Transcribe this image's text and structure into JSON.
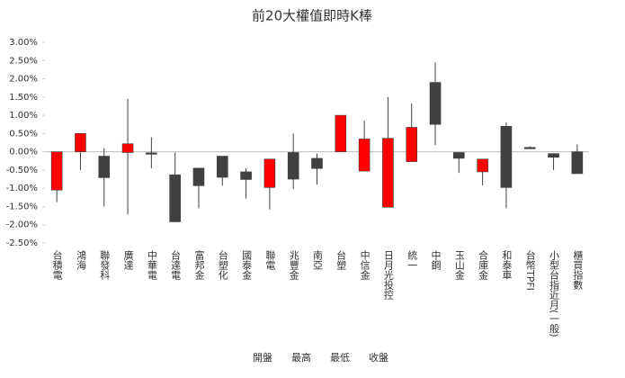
{
  "chart_data": {
    "type": "candlestick",
    "title": "前20大權值即時K棒",
    "categories": [
      "台積電",
      "鴻海",
      "聯發科",
      "廣達",
      "中華電",
      "台達電",
      "富邦金",
      "台塑化",
      "國泰金",
      "聯電",
      "兆豐金",
      "南亞",
      "台塑",
      "中信金",
      "日月光投控",
      "統一",
      "中鋼",
      "玉山金",
      "合庫金",
      "和泰車",
      "台幣TPFI",
      "小型台指近月(一般)",
      "櫃買指數"
    ],
    "series": [
      {
        "name": "開盤",
        "values": [
          -1.05,
          0,
          -0.12,
          -0.02,
          -0.03,
          -0.63,
          -0.45,
          -0.12,
          -0.55,
          -0.98,
          -0.02,
          -0.18,
          0,
          -0.53,
          -1.52,
          -0.27,
          1.9,
          -0.02,
          -0.55,
          0.7,
          0.12,
          -0.05,
          0
        ]
      },
      {
        "name": "最高",
        "values": [
          0,
          0.5,
          0.1,
          1.45,
          0.4,
          -0.02,
          -0.45,
          -0.12,
          -0.45,
          -0.2,
          0.5,
          -0.05,
          1.0,
          0.85,
          1.5,
          1.32,
          2.45,
          -0.02,
          -0.2,
          0.8,
          0.15,
          -0.05,
          0.2
        ]
      },
      {
        "name": "最低",
        "values": [
          -1.38,
          -0.5,
          -1.5,
          -1.72,
          -0.45,
          -1.92,
          -1.55,
          -0.93,
          -1.28,
          -1.58,
          -1.02,
          -0.9,
          0,
          -0.53,
          -1.52,
          -0.27,
          0.18,
          -0.58,
          -0.92,
          -1.55,
          0.07,
          -0.5,
          -0.6
        ]
      },
      {
        "name": "收盤",
        "values": [
          0,
          0.5,
          -0.71,
          0.22,
          -0.06,
          -1.92,
          -0.93,
          -0.7,
          -0.76,
          -0.2,
          -0.75,
          -0.46,
          1.0,
          0.35,
          0.37,
          0.67,
          0.75,
          -0.18,
          -0.2,
          -0.98,
          0.1,
          -0.15,
          -0.6
        ]
      }
    ],
    "up_color": "#ff0000",
    "down_color": "#404040",
    "ylim": [
      -2.5,
      3.0
    ],
    "yticks": [
      {
        "value": -2.5,
        "label": "-2.50%"
      },
      {
        "value": -2.0,
        "label": "-2.00%"
      },
      {
        "value": -1.5,
        "label": "-1.50%"
      },
      {
        "value": -1.0,
        "label": "-1.00%"
      },
      {
        "value": -0.5,
        "label": "-0.50%"
      },
      {
        "value": 0,
        "label": "0.00%"
      },
      {
        "value": 0.5,
        "label": "0.50%"
      },
      {
        "value": 1.0,
        "label": "1.00%"
      },
      {
        "value": 1.5,
        "label": "1.50%"
      },
      {
        "value": 2.0,
        "label": "2.00%"
      },
      {
        "value": 2.5,
        "label": "2.50%"
      },
      {
        "value": 3.0,
        "label": "3.00%"
      }
    ]
  }
}
